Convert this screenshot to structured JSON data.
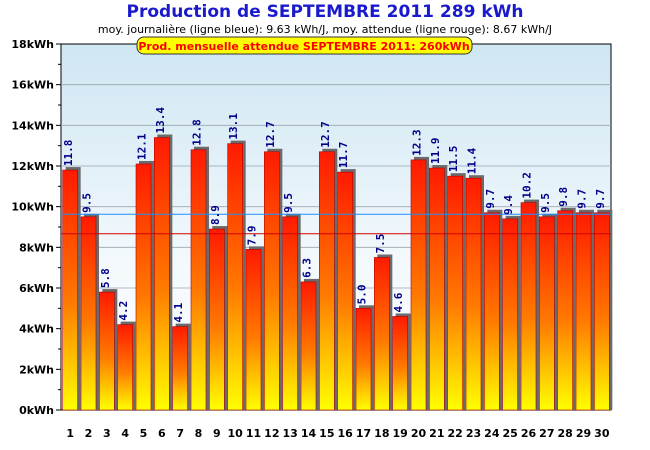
{
  "title": "Production de SEPTEMBRE 2011  289 kWh",
  "subtitle": "moy. journalière (ligne bleue): 9.63 kWh/J,   moy. attendue (ligne rouge): 8.67 kWh/J",
  "chart_data": {
    "type": "bar",
    "title": "Production de SEPTEMBRE 2011  289 kWh",
    "subtitle": "moy. journalière (ligne bleue): 9.63 kWh/J,   moy. attendue (ligne rouge): 8.67 kWh/J",
    "annotation": "Prod. mensuelle attendue SEPTEMBRE 2011: 260kWh",
    "categories": [
      "1",
      "2",
      "3",
      "4",
      "5",
      "6",
      "7",
      "8",
      "9",
      "10",
      "11",
      "12",
      "13",
      "14",
      "15",
      "16",
      "17",
      "18",
      "19",
      "20",
      "21",
      "22",
      "23",
      "24",
      "25",
      "26",
      "27",
      "28",
      "29",
      "30"
    ],
    "values": [
      11.8,
      9.5,
      5.8,
      4.2,
      12.1,
      13.4,
      4.1,
      12.8,
      8.9,
      13.1,
      7.9,
      12.7,
      9.5,
      6.3,
      12.7,
      11.7,
      5.0,
      7.5,
      4.6,
      12.3,
      11.9,
      11.5,
      11.4,
      9.7,
      9.4,
      10.2,
      9.5,
      9.8,
      9.7,
      9.7
    ],
    "value_labels": [
      "11.8",
      "9.5",
      "5.8",
      "4.2",
      "12.1",
      "13.4",
      "4.1",
      "12.8",
      "8.9",
      "13.1",
      "7.9",
      "12.7",
      "9.5",
      "6.3",
      "12.7",
      "11.7",
      "5.0",
      "7.5",
      "4.6",
      "12.3",
      "11.9",
      "11.5",
      "11.4",
      "9.7",
      "9.4",
      "10.2",
      "9.5",
      "9.8",
      "9.7",
      "9.7"
    ],
    "ylim": [
      0,
      18
    ],
    "yticks": [
      "0kWh",
      "2kWh",
      "4kWh",
      "6kWh",
      "8kWh",
      "10kWh",
      "12kWh",
      "14kWh",
      "16kWh",
      "18kWh"
    ],
    "ytick_values": [
      0,
      2,
      4,
      6,
      8,
      10,
      12,
      14,
      16,
      18
    ],
    "reference_lines": [
      {
        "value": 9.63,
        "color": "#1e90ff"
      },
      {
        "value": 8.67,
        "color": "#d00000"
      }
    ],
    "grid": true,
    "bar_gradient": [
      "#ff0000",
      "#ffff00"
    ]
  }
}
